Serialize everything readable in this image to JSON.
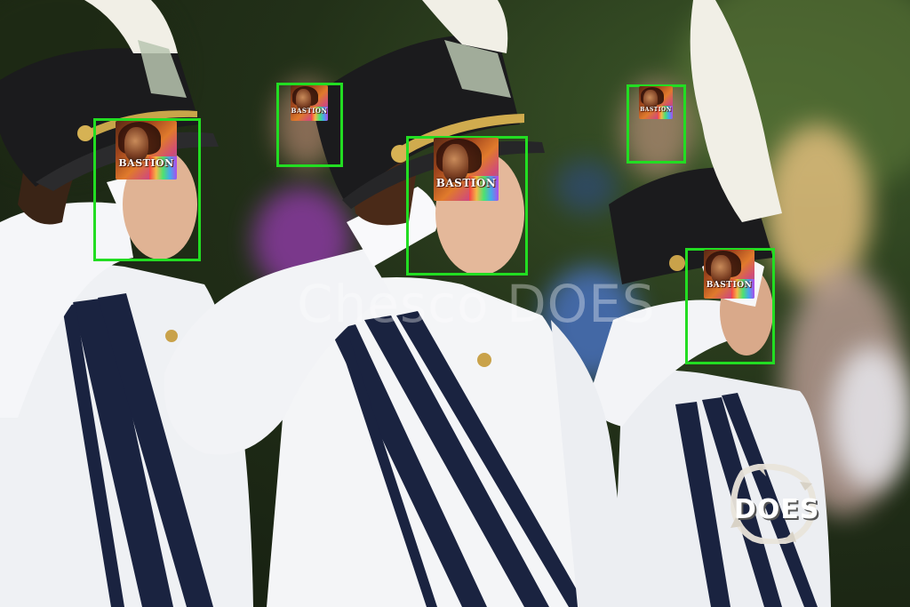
{
  "image": {
    "description_colors": {
      "detection_box": "#22dd22",
      "uniform_white": "#f4f5f7",
      "stripe_navy": "#1a2340",
      "hat_black": "#1b1b1d",
      "plume_white": "#f1efe6",
      "background_green": "#2d3a22"
    }
  },
  "watermark": {
    "text": "Chesco DOES"
  },
  "logo": {
    "text": "DOES"
  },
  "detections": [
    {
      "label": "BASTION"
    },
    {
      "label": "BASTION"
    },
    {
      "label": "BASTION"
    },
    {
      "label": "BASTION"
    },
    {
      "label": "BASTION"
    }
  ]
}
